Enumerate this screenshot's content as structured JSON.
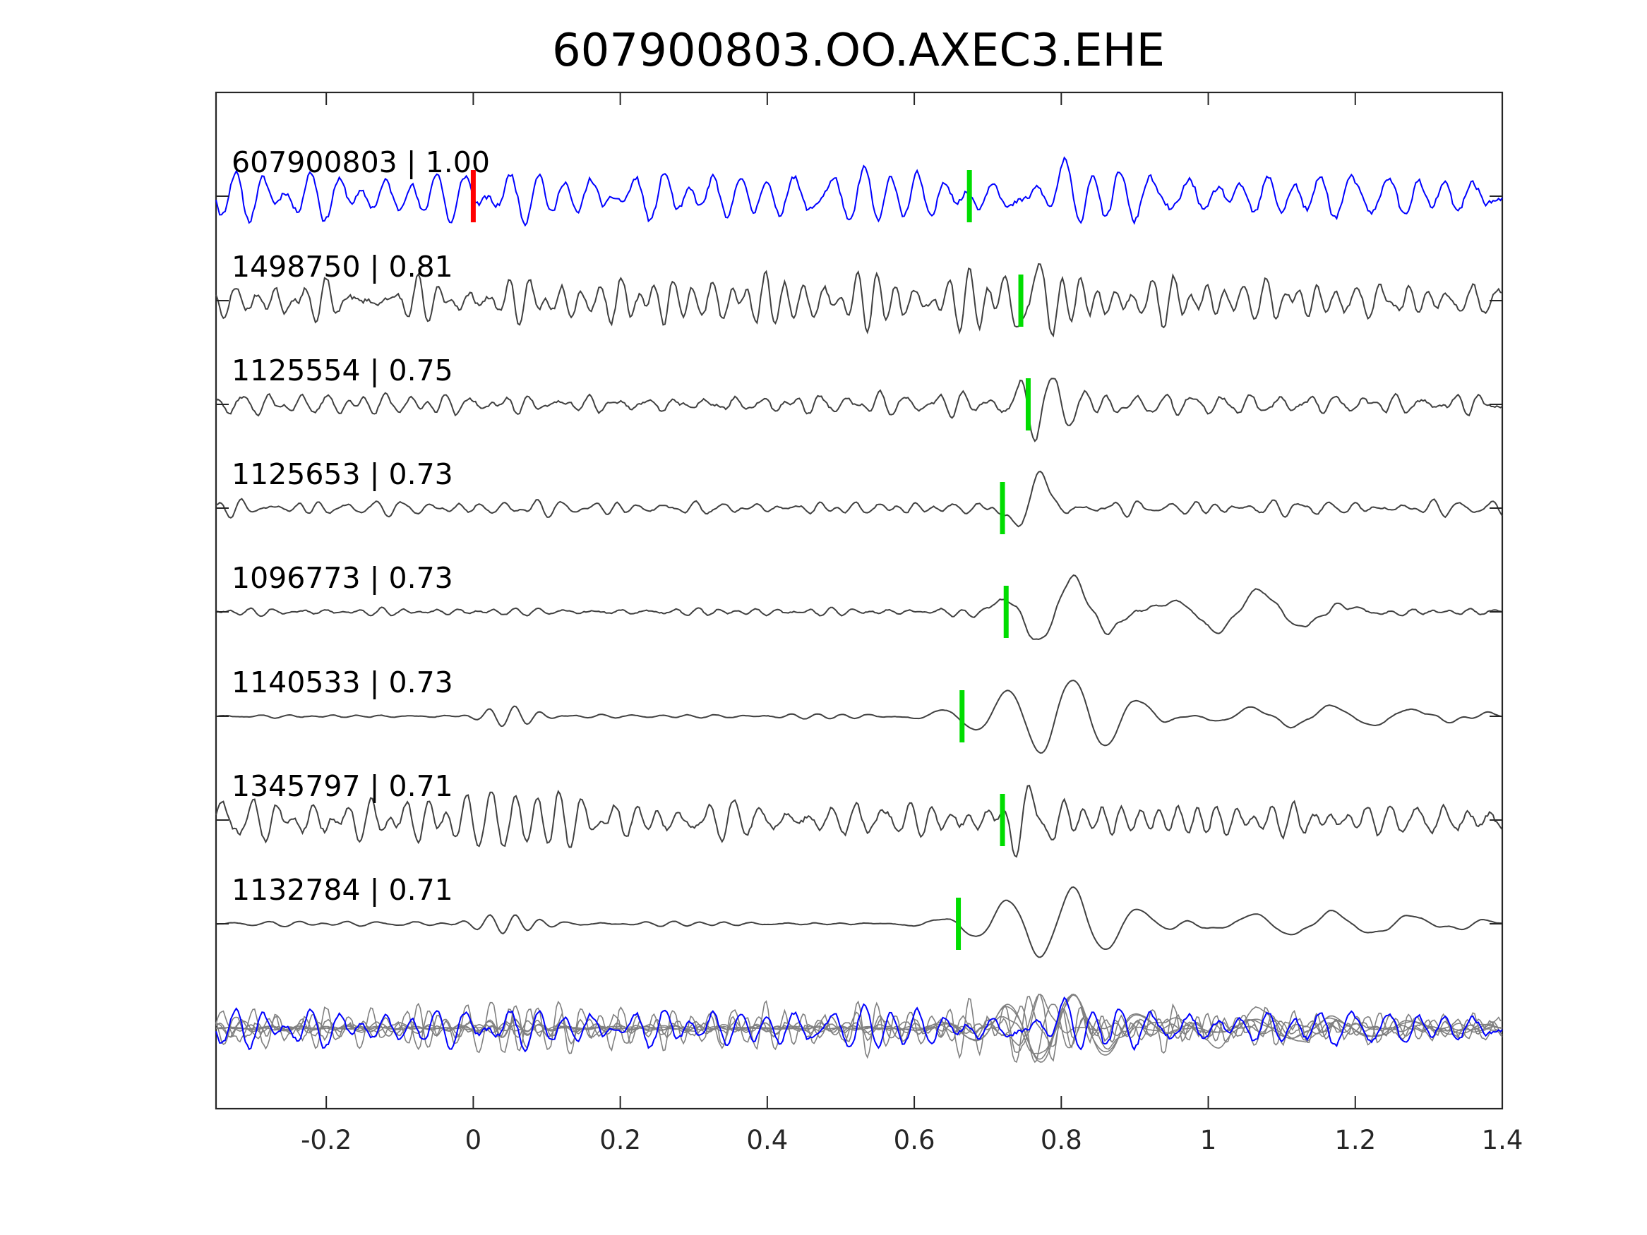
{
  "chart_data": {
    "type": "line",
    "title": "607900803.OO.AXEC3.EHE",
    "xlabel": "",
    "ylabel": "",
    "xlim": [
      -0.35,
      1.4
    ],
    "x_ticks": [
      -0.2,
      0,
      0.2,
      0.4,
      0.6,
      0.8,
      1,
      1.2,
      1.4
    ],
    "x_tick_labels": [
      "-0.2",
      "0",
      "0.2",
      "0.4",
      "0.6",
      "0.8",
      "1",
      "1.2",
      "1.4"
    ],
    "reference_pick": {
      "time": 0.0,
      "color": "#ff0000"
    },
    "colors": {
      "master": "#0000ff",
      "trace": "#404040",
      "overlay": "#808080",
      "pick": "#00dd00"
    },
    "grid": false,
    "series": [
      {
        "name": "607900803",
        "cc": "1.00",
        "label": "607900803 | 1.00",
        "pick": 0.675,
        "style": "master",
        "events": [
          {
            "t": 0.78,
            "sigma": 0.03,
            "amp": 0.15,
            "period": 0.1
          }
        ],
        "noise": 0.35,
        "noise_period": 0.045,
        "seed": 11
      },
      {
        "name": "1498750",
        "cc": "0.81",
        "label": "1498750 | 0.81",
        "pick": 0.745,
        "style": "trace",
        "events": [
          {
            "t": 0.76,
            "sigma": 0.05,
            "amp": 0.8,
            "period": 0.05
          }
        ],
        "noise": 1.0,
        "noise_period": 0.028,
        "seed": 23
      },
      {
        "name": "1125554",
        "cc": "0.75",
        "label": "1125554 | 0.75",
        "pick": 0.755,
        "style": "trace",
        "events": [
          {
            "t": 0.78,
            "sigma": 0.06,
            "amp": 0.9,
            "period": 0.05
          }
        ],
        "noise": 0.7,
        "noise_period": 0.03,
        "seed": 37
      },
      {
        "name": "1125653",
        "cc": "0.73",
        "label": "1125653 | 0.73",
        "pick": 0.72,
        "style": "trace",
        "events": [
          {
            "t": 0.76,
            "sigma": 0.03,
            "amp": 1.4,
            "period": 0.09
          }
        ],
        "noise": 0.35,
        "noise_period": 0.03,
        "seed": 41
      },
      {
        "name": "1096773",
        "cc": "0.73",
        "label": "1096773 | 0.73",
        "pick": 0.725,
        "style": "trace",
        "events": [
          {
            "t": 0.8,
            "sigma": 0.08,
            "amp": 1.6,
            "period": 0.1
          },
          {
            "t": 1.05,
            "sigma": 0.12,
            "amp": 1.0,
            "period": 0.12
          }
        ],
        "noise": 0.4,
        "noise_period": 0.03,
        "seed": 53
      },
      {
        "name": "1140533",
        "cc": "0.73",
        "label": "1140533 | 0.73",
        "pick": 0.665,
        "style": "trace",
        "events": [
          {
            "t": 0.05,
            "sigma": 0.05,
            "amp": 0.5,
            "period": 0.035
          },
          {
            "t": 0.8,
            "sigma": 0.12,
            "amp": 1.5,
            "period": 0.09
          },
          {
            "t": 1.15,
            "sigma": 0.2,
            "amp": 0.4,
            "period": 0.11
          }
        ],
        "noise": 0.12,
        "noise_period": 0.04,
        "seed": 67
      },
      {
        "name": "1345797",
        "cc": "0.71",
        "label": "1345797 | 0.71",
        "pick": 0.72,
        "style": "trace",
        "events": [
          {
            "t": 0.05,
            "sigma": 0.06,
            "amp": 0.9,
            "period": 0.03
          },
          {
            "t": 0.75,
            "sigma": 0.05,
            "amp": 0.6,
            "period": 0.05
          }
        ],
        "noise": 0.8,
        "noise_period": 0.028,
        "seed": 71
      },
      {
        "name": "1132784",
        "cc": "0.71",
        "label": "1132784 | 0.71",
        "pick": 0.66,
        "style": "trace",
        "events": [
          {
            "t": 0.05,
            "sigma": 0.05,
            "amp": 0.4,
            "period": 0.035
          },
          {
            "t": 0.8,
            "sigma": 0.12,
            "amp": 1.4,
            "period": 0.09
          },
          {
            "t": 1.15,
            "sigma": 0.2,
            "amp": 0.45,
            "period": 0.11
          }
        ],
        "noise": 0.12,
        "noise_period": 0.04,
        "seed": 83
      }
    ]
  }
}
